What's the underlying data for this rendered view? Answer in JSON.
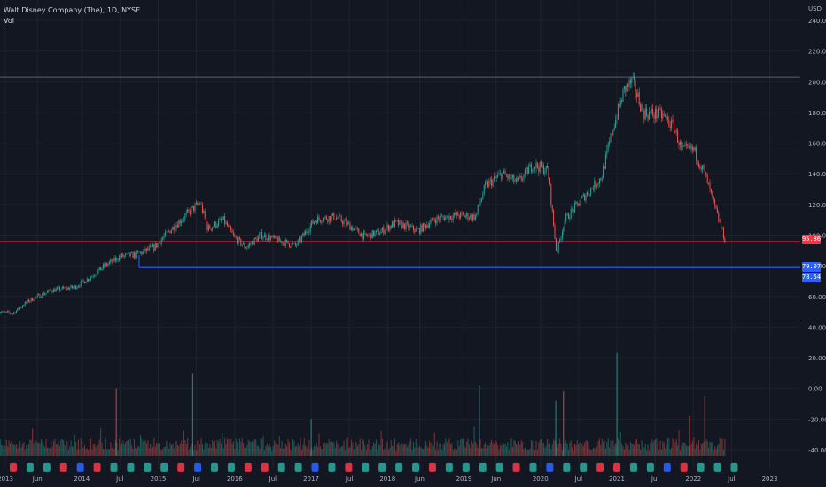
{
  "legend": {
    "symbol_line": "Walt Disney Company (The), 1D, NYSE",
    "indicator": "Vol"
  },
  "colors": {
    "background": "#131722",
    "grid": "#1e222d",
    "axis_text": "#b2b5be",
    "up": "#26a69a",
    "down": "#ef5350",
    "support": "#2962ff",
    "last_price": "#f23645",
    "hline": "#5d606b"
  },
  "price_tags": {
    "last": "95.86",
    "support_high": "79.07",
    "support_low": "78.54"
  },
  "chart_data": {
    "type": "candlestick",
    "title": "Walt Disney Company (The), 1D, NYSE",
    "currency_label": "USD",
    "x_ticks": [
      "2013",
      "Jun",
      "2014",
      "Jul",
      "2015",
      "Jul",
      "2016",
      "Jul",
      "2017",
      "Jul",
      "2018",
      "Jun",
      "2019",
      "Jun",
      "2020",
      "Jul",
      "2021",
      "Jul",
      "2022",
      "Jul",
      "2023"
    ],
    "y_ticks": [
      "240.00",
      "220.00",
      "200.00",
      "180.00",
      "160.00",
      "140.00",
      "120.00",
      "100.00",
      "80.00",
      "60.00",
      "40.00",
      "20.00",
      "0.00",
      "-20.00",
      "-40.00"
    ],
    "ylim": [
      -44,
      242
    ],
    "price_path": [
      [
        2012.9,
        50
      ],
      [
        2013.1,
        49
      ],
      [
        2013.3,
        57
      ],
      [
        2013.6,
        64
      ],
      [
        2013.9,
        66
      ],
      [
        2014.1,
        72
      ],
      [
        2014.3,
        80
      ],
      [
        2014.5,
        86
      ],
      [
        2014.7,
        87
      ],
      [
        2014.95,
        92
      ],
      [
        2015.15,
        103
      ],
      [
        2015.3,
        110
      ],
      [
        2015.45,
        117
      ],
      [
        2015.55,
        121
      ],
      [
        2015.65,
        104
      ],
      [
        2015.85,
        110
      ],
      [
        2016.0,
        98
      ],
      [
        2016.15,
        92
      ],
      [
        2016.35,
        100
      ],
      [
        2016.6,
        96
      ],
      [
        2016.8,
        93
      ],
      [
        2017.05,
        110
      ],
      [
        2017.3,
        112
      ],
      [
        2017.45,
        108
      ],
      [
        2017.7,
        99
      ],
      [
        2017.9,
        102
      ],
      [
        2018.1,
        108
      ],
      [
        2018.4,
        103
      ],
      [
        2018.6,
        110
      ],
      [
        2018.9,
        113
      ],
      [
        2019.15,
        112
      ],
      [
        2019.28,
        132
      ],
      [
        2019.5,
        140
      ],
      [
        2019.7,
        134
      ],
      [
        2019.9,
        146
      ],
      [
        2020.1,
        142
      ],
      [
        2020.21,
        88
      ],
      [
        2020.32,
        110
      ],
      [
        2020.55,
        124
      ],
      [
        2020.8,
        138
      ],
      [
        2020.95,
        170
      ],
      [
        2021.1,
        195
      ],
      [
        2021.2,
        200
      ],
      [
        2021.35,
        180
      ],
      [
        2021.6,
        178
      ],
      [
        2021.75,
        170
      ],
      [
        2021.85,
        155
      ],
      [
        2022.0,
        156
      ],
      [
        2022.15,
        140
      ],
      [
        2022.3,
        115
      ],
      [
        2022.42,
        96
      ]
    ],
    "support_line": {
      "value": 79.07,
      "from": 2014.75,
      "to_axis": true
    },
    "support_line_2": {
      "value": 78.54
    },
    "resistance_line": {
      "value": 203
    },
    "last_price": 95.86,
    "volume_baseline": -44,
    "volume_spikes": [
      [
        2014.45,
        0
      ],
      [
        2015.45,
        10
      ],
      [
        2017.0,
        -20
      ],
      [
        2019.2,
        2
      ],
      [
        2020.2,
        -8
      ],
      [
        2020.3,
        -2
      ],
      [
        2021.0,
        23
      ],
      [
        2021.95,
        -18
      ],
      [
        2022.15,
        -5
      ]
    ],
    "event_markers": {
      "count": 44,
      "y": -44
    }
  }
}
